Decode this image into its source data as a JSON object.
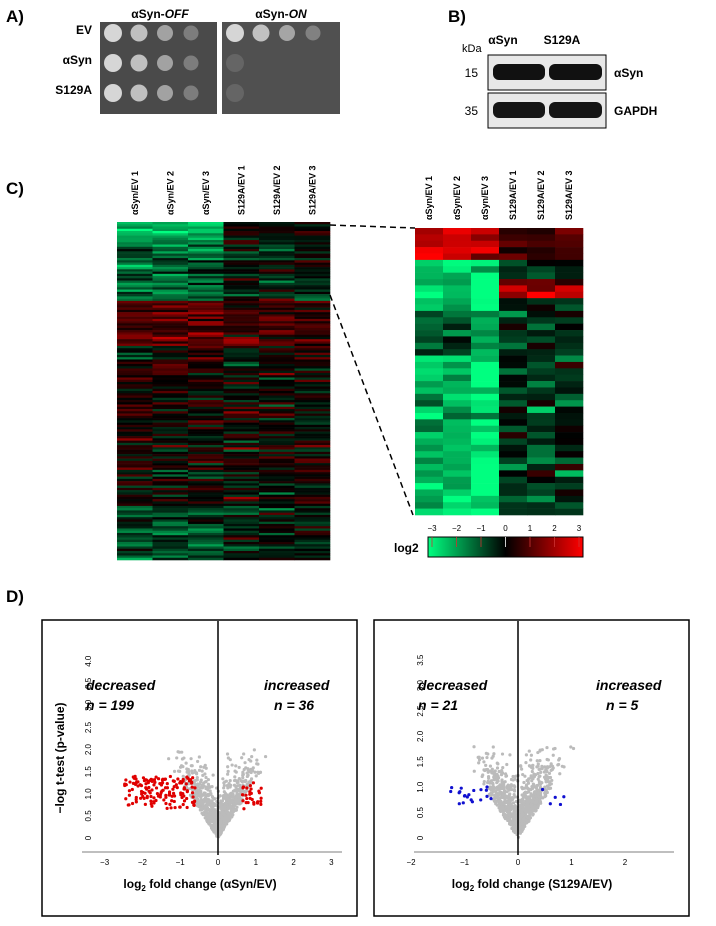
{
  "panel_a": {
    "label": "A)",
    "headers": [
      {
        "prefix": "αSyn-",
        "state": "OFF"
      },
      {
        "prefix": "αSyn-",
        "state": "ON"
      }
    ],
    "rows": [
      "EV",
      "αSyn",
      "S129A"
    ]
  },
  "panel_b": {
    "label": "B)",
    "unit": "kDa",
    "lanes": [
      "αSyn",
      "S129A"
    ],
    "markers": [
      "15",
      "35"
    ],
    "proteins": [
      "αSyn",
      "GAPDH"
    ]
  },
  "panel_c": {
    "label": "C)",
    "columns": [
      "αSyn/EV 1",
      "αSyn/EV 2",
      "αSyn/EV 3",
      "S129A/EV 1",
      "S129A/EV 2",
      "S129A/EV 3"
    ],
    "colorbar": {
      "label": "log2",
      "ticks": [
        "−3",
        "−2",
        "−1",
        "0",
        "1",
        "2",
        "3"
      ]
    }
  },
  "panel_d": {
    "label": "D)",
    "ylabel": "−log t-test (p-value)",
    "plots": [
      {
        "xlabel": {
          "pre": "log",
          "sub": "2",
          "post": " fold change (αSyn/EV)"
        },
        "decreased": "decreased",
        "n_decreased": "n = 199",
        "increased": "increased",
        "n_increased": "n = 36",
        "xticks": [
          "−3",
          "−2",
          "−1",
          "0",
          "1",
          "2",
          "3"
        ],
        "yticks": [
          "0",
          "0.5",
          "1.0",
          "1.5",
          "2.0",
          "2.5",
          "3.0",
          "3.5",
          "4.0"
        ]
      },
      {
        "xlabel": {
          "pre": "log",
          "sub": "2",
          "post": " fold change (S129A/EV)"
        },
        "decreased": "decreased",
        "n_decreased": "n = 21",
        "increased": "increased",
        "n_increased": "n = 5",
        "xticks": [
          "−2",
          "−1",
          "0",
          "1",
          "2"
        ],
        "yticks": [
          "0",
          "0.5",
          "1.0",
          "1.5",
          "2.0",
          "2.5",
          "3.0",
          "3.5"
        ]
      }
    ]
  }
}
